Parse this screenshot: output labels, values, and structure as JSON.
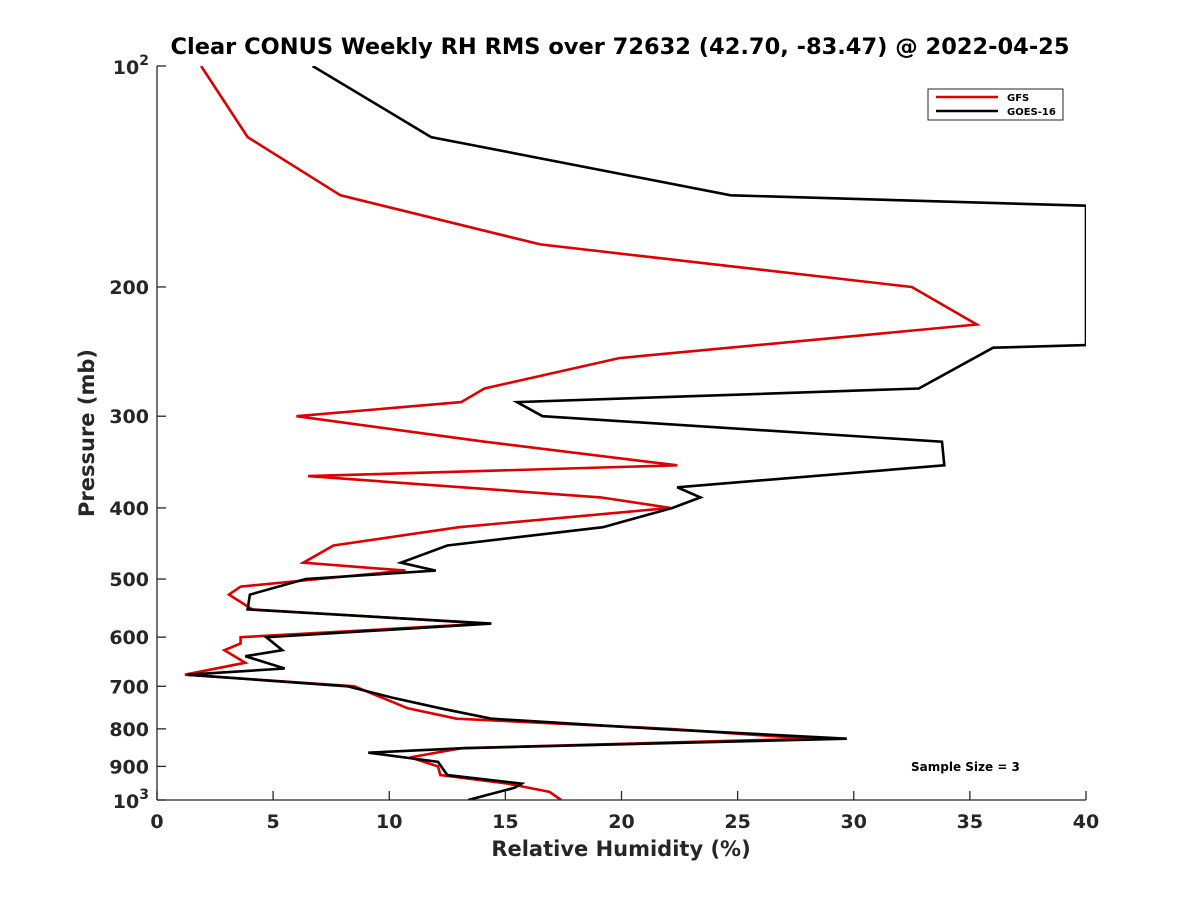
{
  "chart_data": {
    "type": "line",
    "title": "Clear CONUS Weekly RH RMS over 72632 (42.70, -83.47) @ 2022-04-25",
    "xlabel": "Relative Humidity (%)",
    "ylabel": "Pressure (mb)",
    "xlim": [
      0,
      40
    ],
    "ylim": [
      100,
      1000
    ],
    "y_scale": "log",
    "y_reversed": true,
    "x_ticks": [
      0,
      5,
      10,
      15,
      20,
      25,
      30,
      35,
      40
    ],
    "x_tick_labels": [
      "0",
      "5",
      "10",
      "15",
      "20",
      "25",
      "30",
      "35",
      "40"
    ],
    "y_ticks": [
      200,
      300,
      400,
      500,
      600,
      700,
      800,
      900
    ],
    "y_tick_labels": [
      "200",
      "300",
      "400",
      "500",
      "600",
      "700",
      "800",
      "900"
    ],
    "y_end_labels": [
      {
        "value": 100,
        "base": "10",
        "exponent": "2"
      },
      {
        "value": 1000,
        "base": "10",
        "exponent": "3"
      }
    ],
    "grid": false,
    "legend_position": "top-right",
    "annotation": "Sample Size = 3",
    "series": [
      {
        "name": "GFS",
        "color": "#dd0000",
        "points": [
          [
            1.9,
            100
          ],
          [
            3.9,
            125
          ],
          [
            7.9,
            150
          ],
          [
            16.5,
            175
          ],
          [
            32.5,
            200
          ],
          [
            35.3,
            225
          ],
          [
            19.9,
            250
          ],
          [
            14.1,
            275
          ],
          [
            13.1,
            287
          ],
          [
            6.0,
            300
          ],
          [
            14.1,
            325
          ],
          [
            22.4,
            350
          ],
          [
            6.5,
            362
          ],
          [
            19.1,
            387
          ],
          [
            22.1,
            400
          ],
          [
            13.0,
            425
          ],
          [
            7.6,
            450
          ],
          [
            6.3,
            475
          ],
          [
            10.7,
            487
          ],
          [
            3.6,
            512
          ],
          [
            3.1,
            525
          ],
          [
            4.1,
            550
          ],
          [
            14.2,
            575
          ],
          [
            3.6,
            600
          ],
          [
            3.6,
            612
          ],
          [
            2.9,
            625
          ],
          [
            3.8,
            650
          ],
          [
            1.2,
            675
          ],
          [
            8.5,
            700
          ],
          [
            10.8,
            750
          ],
          [
            12.9,
            775
          ],
          [
            22.1,
            800
          ],
          [
            28.1,
            825
          ],
          [
            13.1,
            850
          ],
          [
            10.9,
            875
          ],
          [
            12.1,
            900
          ],
          [
            12.2,
            925
          ],
          [
            15.1,
            950
          ],
          [
            16.9,
            975
          ],
          [
            17.4,
            1000
          ]
        ]
      },
      {
        "name": "GOES-16",
        "color": "#000000",
        "points": [
          [
            6.7,
            100
          ],
          [
            11.8,
            125
          ],
          [
            24.7,
            150
          ],
          [
            40.0,
            155
          ],
          [
            40.0,
            240
          ],
          [
            36.0,
            242
          ],
          [
            32.8,
            275
          ],
          [
            15.5,
            287
          ],
          [
            16.6,
            300
          ],
          [
            33.8,
            325
          ],
          [
            33.9,
            350
          ],
          [
            22.4,
            375
          ],
          [
            23.4,
            387
          ],
          [
            22.2,
            400
          ],
          [
            19.2,
            425
          ],
          [
            12.5,
            450
          ],
          [
            10.5,
            475
          ],
          [
            12.0,
            487
          ],
          [
            6.4,
            500
          ],
          [
            4.0,
            525
          ],
          [
            3.9,
            550
          ],
          [
            14.4,
            575
          ],
          [
            4.7,
            600
          ],
          [
            5.4,
            625
          ],
          [
            3.8,
            637
          ],
          [
            5.5,
            662
          ],
          [
            1.3,
            675
          ],
          [
            8.2,
            700
          ],
          [
            10.1,
            725
          ],
          [
            12.2,
            750
          ],
          [
            14.4,
            775
          ],
          [
            21.6,
            800
          ],
          [
            29.7,
            825
          ],
          [
            13.2,
            850
          ],
          [
            9.1,
            862
          ],
          [
            12.1,
            887
          ],
          [
            12.5,
            925
          ],
          [
            15.7,
            950
          ],
          [
            15.4,
            962
          ],
          [
            13.4,
            1000
          ]
        ]
      }
    ]
  }
}
